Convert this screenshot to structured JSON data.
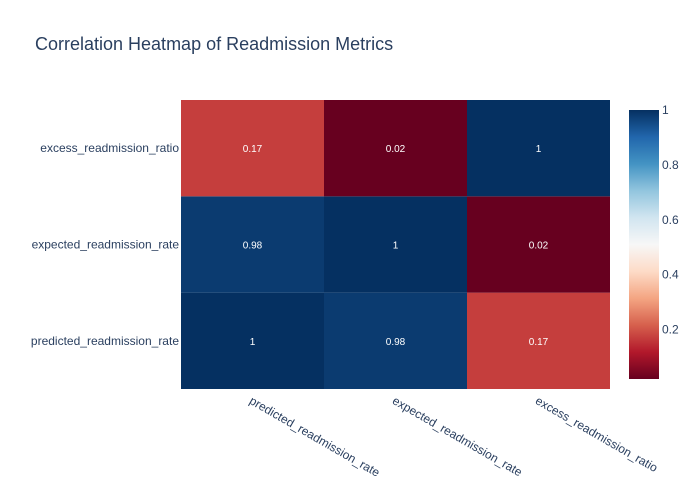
{
  "chart_data": {
    "type": "heatmap",
    "title": "Correlation Heatmap of Readmission Metrics",
    "x": [
      "predicted_readmission_rate",
      "expected_readmission_rate",
      "excess_readmission_ratio"
    ],
    "y": [
      "predicted_readmission_rate",
      "expected_readmission_rate",
      "excess_readmission_ratio"
    ],
    "z": [
      [
        1,
        0.98,
        0.17
      ],
      [
        0.98,
        1,
        0.02
      ],
      [
        0.17,
        0.02,
        1
      ]
    ],
    "text": [
      [
        "1",
        "0.98",
        "0.17"
      ],
      [
        "0.98",
        "1",
        "0.02"
      ],
      [
        "0.17",
        "0.02",
        "1"
      ]
    ],
    "zmin": 0.02,
    "zmax": 1,
    "colorscale": "RdBu",
    "colorbar_ticks": [
      0.2,
      0.4,
      0.6,
      0.8,
      1
    ],
    "colorbar_tick_labels": [
      "0.2",
      "0.4",
      "0.6",
      "0.8",
      "1"
    ]
  },
  "colors": {
    "text": "#2a3f5f",
    "scale": [
      "#67001f",
      "#b2182b",
      "#d6604d",
      "#f4a582",
      "#fddbc7",
      "#f7f7f7",
      "#d1e5f0",
      "#92c5de",
      "#4393c3",
      "#2166ac",
      "#053061"
    ]
  }
}
